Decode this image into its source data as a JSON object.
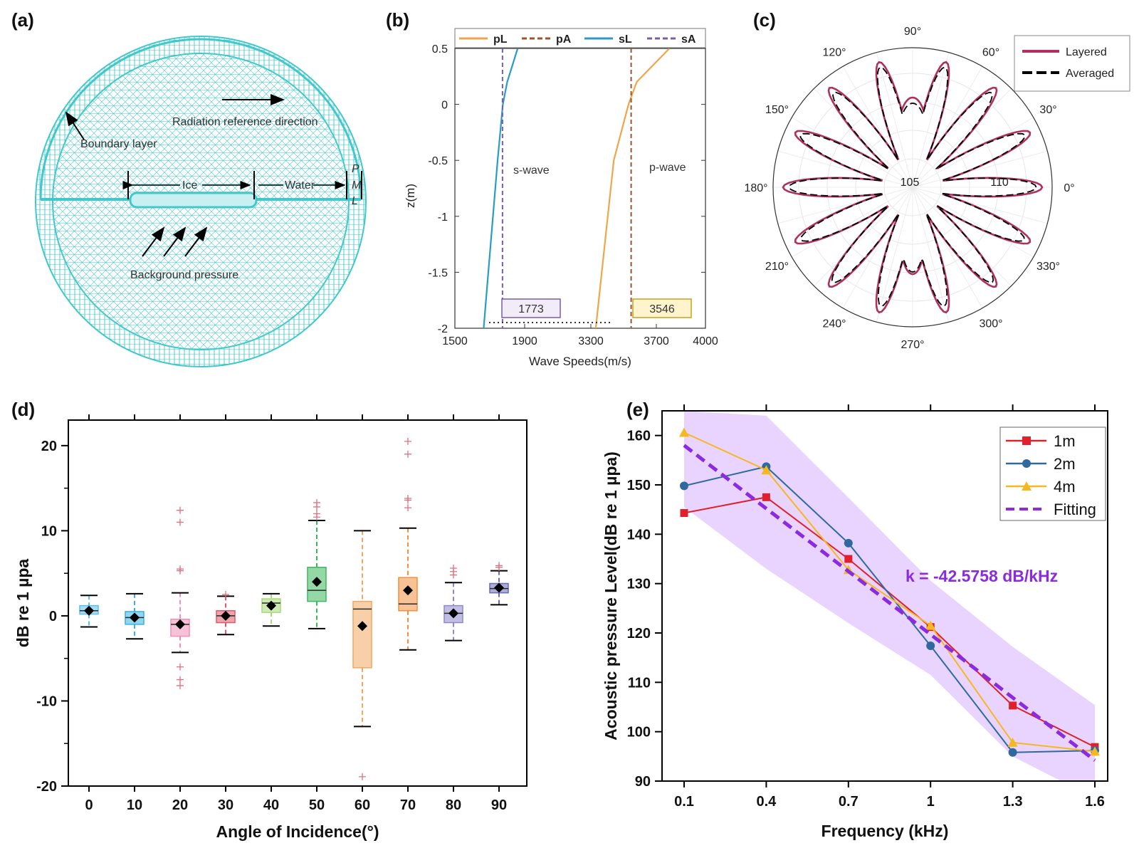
{
  "panels": {
    "a": "(a)",
    "b": "(b)",
    "c": "(c)",
    "d": "(d)",
    "e": "(e)"
  },
  "panel_a": {
    "labels": {
      "radiation": "Radiation reference direction",
      "boundary": "Boundary layer",
      "ice": "Ice",
      "water": "Water",
      "pml_p": "P",
      "pml_m": "M",
      "pml_l": "L",
      "background": "Background pressure"
    },
    "mesh_color": "#40c8cc"
  },
  "chart_data": [
    {
      "panel": "b",
      "type": "line",
      "xlabel": "Wave Speeds(m/s)",
      "ylabel": "z(m)",
      "ylim": [
        -2,
        0.5
      ],
      "x_ticks": [
        "1500",
        "1900",
        "3300",
        "3700",
        "4000"
      ],
      "y_ticks": [
        "0.5",
        "0",
        "-0.5",
        "-1",
        "-1.5",
        "-2"
      ],
      "broken_axis": true,
      "series": [
        {
          "name": "pL",
          "style": "solid",
          "color": "#f0a54a",
          "points": [
            [
              3330,
              -2
            ],
            [
              3440,
              -0.5
            ],
            [
              3530,
              0
            ],
            [
              3580,
              0.2
            ],
            [
              3780,
              0.5
            ]
          ]
        },
        {
          "name": "pA",
          "style": "dashed",
          "color": "#a0522d",
          "x": 3546
        },
        {
          "name": "sL",
          "style": "solid",
          "color": "#2a9bc8",
          "points": [
            [
              1665,
              -2
            ],
            [
              1745,
              -0.5
            ],
            [
              1775,
              0
            ],
            [
              1800,
              0.2
            ],
            [
              1860,
              0.5
            ]
          ]
        },
        {
          "name": "sA",
          "style": "dashed",
          "color": "#7b5ca8",
          "x": 1773
        }
      ],
      "annotations": {
        "s_wave": "s-wave",
        "p_wave": "p-wave",
        "box_s": "1773",
        "box_p": "3546"
      }
    },
    {
      "panel": "c",
      "type": "polar",
      "angle_labels": [
        "0°",
        "30°",
        "60°",
        "90°",
        "120°",
        "150°",
        "180°",
        "210°",
        "240°",
        "270°",
        "300°",
        "330°"
      ],
      "radial_labels": [
        "105",
        "110"
      ],
      "series": [
        {
          "name": "Layered",
          "style": "solid",
          "color": "#b03060"
        },
        {
          "name": "Averaged",
          "style": "dashed",
          "color": "#000000"
        }
      ]
    },
    {
      "panel": "d",
      "type": "box",
      "xlabel": "Angle of Incidence(°)",
      "ylabel": "dB re 1 µpa",
      "ylim": [
        -20,
        23
      ],
      "y_ticks": [
        "20",
        "10",
        "0",
        "-10",
        "-20"
      ],
      "categories": [
        "0",
        "10",
        "20",
        "30",
        "40",
        "50",
        "60",
        "70",
        "80",
        "90"
      ],
      "boxes": [
        {
          "q1": 0.2,
          "median": 0.6,
          "q3": 1.2,
          "mean": 0.6,
          "wlo": -1.3,
          "whi": 2.4,
          "color": "#5bc0ea",
          "outliers": []
        },
        {
          "q1": -1.0,
          "median": -0.2,
          "q3": 0.5,
          "mean": -0.2,
          "wlo": -2.7,
          "whi": 2.6,
          "color": "#3ab0e0",
          "outliers": []
        },
        {
          "q1": -2.4,
          "median": -1.0,
          "q3": -0.4,
          "mean": -1.0,
          "wlo": -4.3,
          "whi": 2.7,
          "color": "#f08fb8",
          "outliers": [
            12.4,
            11.0,
            5.5,
            5.3,
            -6.0,
            -7.5,
            -8.2
          ]
        },
        {
          "q1": -0.8,
          "median": 0.0,
          "q3": 0.6,
          "mean": 0.0,
          "wlo": -2.2,
          "whi": 2.3,
          "color": "#e05a6a",
          "outliers": [
            2.5
          ]
        },
        {
          "q1": 0.4,
          "median": 1.5,
          "q3": 2.0,
          "mean": 1.2,
          "wlo": -1.2,
          "whi": 2.6,
          "color": "#a8d878",
          "outliers": []
        },
        {
          "q1": 1.7,
          "median": 3.0,
          "q3": 5.7,
          "mean": 4.0,
          "wlo": -1.5,
          "whi": 11.2,
          "color": "#3cb85c",
          "outliers": [
            13.3,
            12.8,
            12.0,
            11.6
          ]
        },
        {
          "q1": -6.1,
          "median": 0.8,
          "q3": 1.7,
          "mean": -1.2,
          "wlo": -13.0,
          "whi": 10.0,
          "color": "#f0a860",
          "outliers": [
            -18.9
          ]
        },
        {
          "q1": 0.6,
          "median": 1.4,
          "q3": 4.5,
          "mean": 3.0,
          "wlo": -4.0,
          "whi": 10.3,
          "color": "#f09040",
          "outliers": [
            20.5,
            19.0,
            13.8,
            13.6,
            12.7
          ]
        },
        {
          "q1": -0.8,
          "median": 0.3,
          "q3": 1.2,
          "mean": 0.3,
          "wlo": -2.9,
          "whi": 3.9,
          "color": "#8f88cc",
          "outliers": [
            5.6,
            5.2,
            4.8
          ]
        },
        {
          "q1": 2.7,
          "median": 3.2,
          "q3": 3.8,
          "mean": 3.3,
          "wlo": 1.3,
          "whi": 5.3,
          "color": "#6a6ab8",
          "outliers": [
            5.9,
            5.7
          ]
        }
      ]
    },
    {
      "panel": "e",
      "type": "line",
      "xlabel": "Frequency (kHz)",
      "ylabel": "Acoustic pressure Level(dB re 1 µpa)",
      "ylim": [
        90,
        165
      ],
      "y_ticks": [
        "90",
        "100",
        "110",
        "120",
        "130",
        "140",
        "150",
        "160"
      ],
      "x": [
        0.1,
        0.4,
        0.7,
        1.0,
        1.3,
        1.6
      ],
      "x_ticks": [
        "0.1",
        "0.4",
        "0.7",
        "1",
        "1.3",
        "1.6"
      ],
      "series": [
        {
          "name": "1m",
          "marker": "square",
          "color": "#e0202a",
          "values": [
            144.3,
            147.5,
            135.0,
            121.2,
            105.3,
            96.9
          ]
        },
        {
          "name": "2m",
          "marker": "circle",
          "color": "#2e6a9e",
          "values": [
            149.8,
            153.7,
            138.2,
            117.4,
            95.8,
            96.2
          ]
        },
        {
          "name": "4m",
          "marker": "triangle",
          "color": "#f5b820",
          "values": [
            160.6,
            153.0,
            132.8,
            121.5,
            97.8,
            96.0
          ]
        },
        {
          "name": "Fitting",
          "style": "dashed",
          "color": "#8a2be2",
          "values": [
            158.0,
            145.2,
            132.5,
            119.7,
            106.9,
            94.2
          ]
        }
      ],
      "band": {
        "upper": [
          165,
          164,
          147.4,
          130.6,
          117.2,
          105.4
        ],
        "lower": [
          145.5,
          133,
          122,
          111.5,
          95.0,
          86.5
        ],
        "color": "#d9b8ff"
      },
      "annotation": "k = -42.5758 dB/kHz"
    }
  ]
}
